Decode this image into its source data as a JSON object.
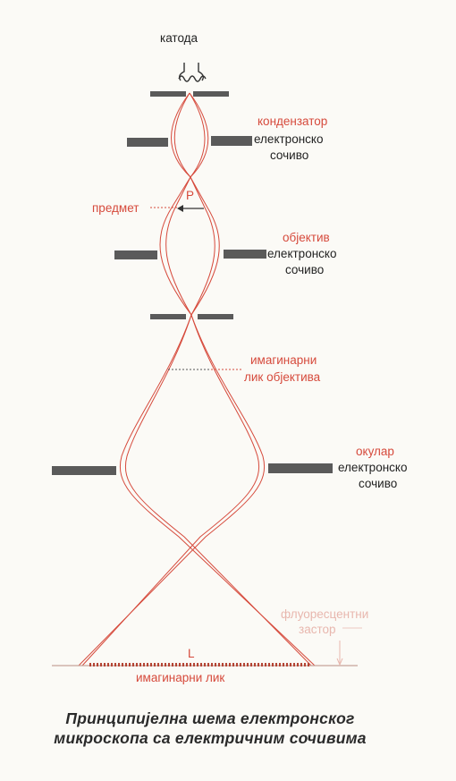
{
  "labels": {
    "cathode": "катода",
    "condenser_red": "кондензатор",
    "condenser_black_1": "електронско",
    "condenser_black_2": "сочиво",
    "object": "предмет",
    "object_mark": "P",
    "objective_red": "објектив",
    "objective_black_1": "електронско",
    "objective_black_2": "сочиво",
    "intermediate_image_1": "имагинарни",
    "intermediate_image_2": "лик објектива",
    "ocular_red": "окулар",
    "ocular_black_1": "електронско",
    "ocular_black_2": "сочиво",
    "screen_1": "флуоресцентни",
    "screen_2": "застор",
    "final_mark": "L",
    "final_image": "имагинарни лик"
  },
  "caption": {
    "line1": "Принципијелна шема електронског",
    "line2": "микроскопа са електричним сочивима"
  },
  "colors": {
    "ray": "#d64a3c",
    "lens": "#5a5a5a",
    "text_black": "#222222",
    "text_red": "#d64a3c"
  }
}
